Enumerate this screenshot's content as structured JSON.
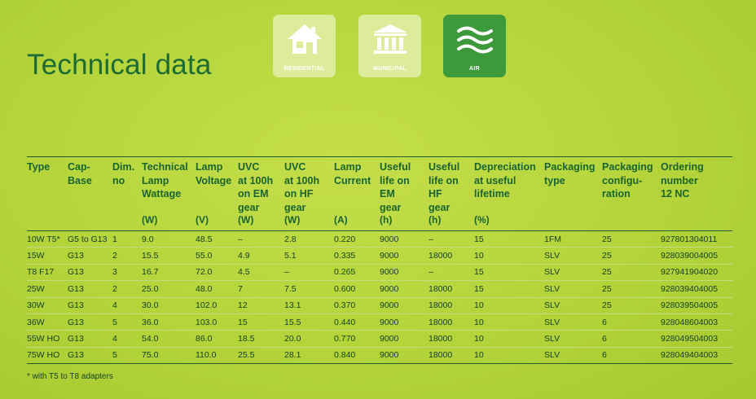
{
  "title": "Technical data",
  "tiles": [
    {
      "label": "RESIDENTIAL",
      "icon": "house-icon",
      "style": "light"
    },
    {
      "label": "MUNICIPAL",
      "icon": "building-icon",
      "style": "light"
    },
    {
      "label": "AIR",
      "icon": "air-waves-icon",
      "style": "dark"
    }
  ],
  "table": {
    "headers": [
      "Type",
      "Cap-\nBase",
      "Dim.\nno",
      "Technical\nLamp\nWattage",
      "Lamp\nVoltage",
      "UVC\nat 100h\non EM\ngear",
      "UVC\nat 100h\non HF\ngear",
      "Lamp\nCurrent",
      "Useful\nlife on\nEM\ngear",
      "Useful\nlife on\nHF\ngear",
      "Depreciation\nat useful\nlifetime",
      "Packaging\ntype",
      "Packaging\nconfigu-\nration",
      "Ordering\nnumber\n12 NC"
    ],
    "units": [
      "",
      "",
      "",
      "(W)",
      "(V)",
      "(W)",
      "(W)",
      "(A)",
      "(h)",
      "(h)",
      "(%)",
      "",
      "",
      ""
    ],
    "rows": [
      [
        "10W T5*",
        "G5 to G13",
        "1",
        "9.0",
        "48.5",
        "–",
        "2.8",
        "0.220",
        "9000",
        "–",
        "15",
        "1FM",
        "25",
        "927801304011"
      ],
      [
        "15W",
        "G13",
        "2",
        "15.5",
        "55.0",
        "4.9",
        "5.1",
        "0.335",
        "9000",
        "18000",
        "10",
        "SLV",
        "25",
        "928039004005"
      ],
      [
        "T8 F17",
        "G13",
        "3",
        "16.7",
        "72.0",
        "4.5",
        "–",
        "0.265",
        "9000",
        "–",
        "15",
        "SLV",
        "25",
        "927941904020"
      ],
      [
        "25W",
        "G13",
        "2",
        "25.0",
        "48.0",
        "7",
        "7.5",
        "0.600",
        "9000",
        "18000",
        "15",
        "SLV",
        "25",
        "928039404005"
      ],
      [
        "30W",
        "G13",
        "4",
        "30.0",
        "102.0",
        "12",
        "13.1",
        "0.370",
        "9000",
        "18000",
        "10",
        "SLV",
        "25",
        "928039504005"
      ],
      [
        "36W",
        "G13",
        "5",
        "36.0",
        "103.0",
        "15",
        "15.5",
        "0.440",
        "9000",
        "18000",
        "10",
        "SLV",
        "6",
        "928048604003"
      ],
      [
        "55W HO",
        "G13",
        "4",
        "54.0",
        "86.0",
        "18.5",
        "20.0",
        "0.770",
        "9000",
        "18000",
        "10",
        "SLV",
        "6",
        "928049504003"
      ],
      [
        "75W HO",
        "G13",
        "5",
        "75.0",
        "110.0",
        "25.5",
        "28.1",
        "0.840",
        "9000",
        "18000",
        "10",
        "SLV",
        "6",
        "928049404003"
      ]
    ]
  },
  "footnote": "* with T5 to T8 adapters"
}
